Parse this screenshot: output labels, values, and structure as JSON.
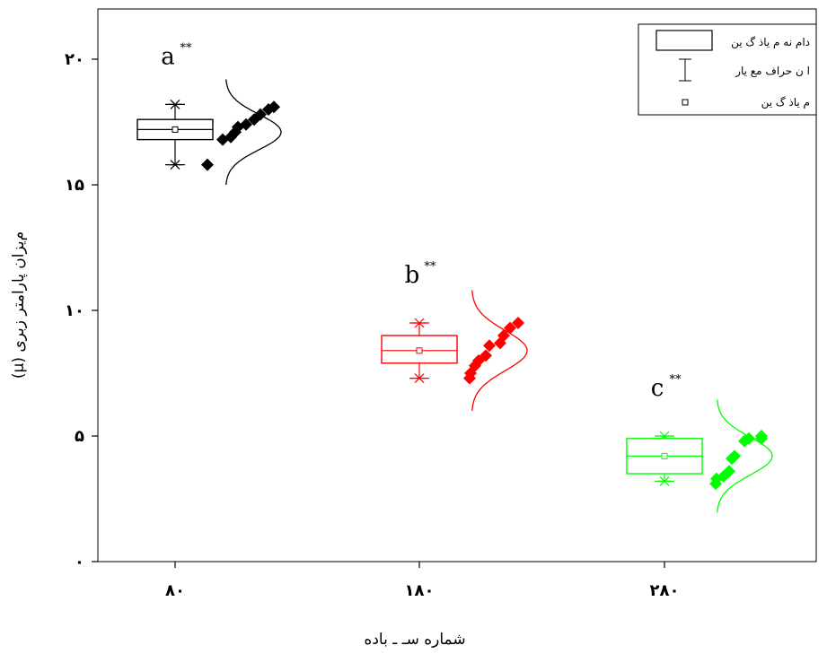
{
  "chart_data": {
    "type": "box",
    "xlabel": "شماره  سـ ـ باده",
    "ylabel": "(μ) م‌یزان پارامتر زبری",
    "ylim": [
      0,
      22
    ],
    "yticks": [
      0,
      5,
      10,
      15,
      20
    ],
    "ytick_labels": [
      "٠",
      "۵",
      "١٠",
      "١۵",
      "٢٠"
    ],
    "categories": [
      "٨٠",
      "١٨٠",
      "٢٨٠"
    ],
    "groups": [
      {
        "category": "٨٠",
        "color": "#000000",
        "letter": "a",
        "significance": "**",
        "mean": 17.2,
        "box": [
          16.8,
          17.6
        ],
        "whisker": [
          15.8,
          18.2
        ],
        "points": [
          15.8,
          16.8,
          16.9,
          17.1,
          17.3,
          17.4,
          17.6,
          17.8,
          18.0,
          18.1
        ],
        "curve_mean": 17.1,
        "curve_sd": 0.7
      },
      {
        "category": "١٨٠",
        "color": "#ff0000",
        "letter": "b",
        "significance": "**",
        "mean": 8.4,
        "box": [
          7.9,
          9.0
        ],
        "whisker": [
          7.3,
          9.5
        ],
        "points": [
          7.3,
          7.5,
          7.8,
          8.0,
          8.2,
          8.6,
          8.7,
          9.0,
          9.3,
          9.5
        ],
        "curve_mean": 8.4,
        "curve_sd": 0.8
      },
      {
        "category": "٢٨٠",
        "color": "#00ff00",
        "letter": "c",
        "significance": "**",
        "mean": 4.2,
        "box": [
          3.5,
          4.9
        ],
        "whisker": [
          3.2,
          5.0
        ],
        "points": [
          3.1,
          3.3,
          3.4,
          3.6,
          4.1,
          4.2,
          4.8,
          4.9,
          4.9,
          5.0
        ],
        "curve_mean": 4.2,
        "curve_sd": 0.75
      }
    ],
    "legend": {
      "position": "top-right",
      "items": [
        {
          "symbol": "box",
          "label": "دام نه م یاذ گ ین"
        },
        {
          "symbol": "whisker",
          "label": "ا ن حراف مع یار"
        },
        {
          "symbol": "mean",
          "label": "م یاذ گ ین"
        }
      ]
    }
  }
}
